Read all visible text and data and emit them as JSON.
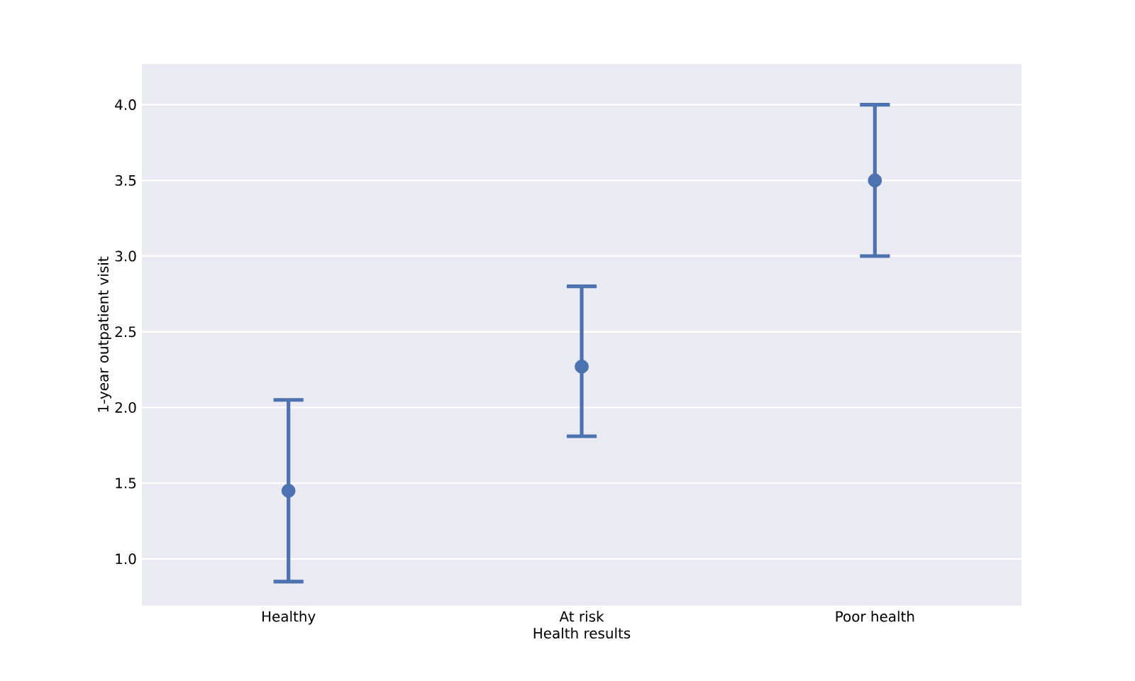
{
  "chart_data": {
    "type": "scatter",
    "xlabel": "Health results",
    "ylabel": "1-year outpatient visit",
    "categories": [
      "Healthy",
      "At risk",
      "Poor health"
    ],
    "series": [
      {
        "color": "#4c72b0",
        "values": [
          1.45,
          2.27,
          3.5
        ],
        "errors": [
          [
            0.85,
            2.05
          ],
          [
            1.81,
            2.8
          ],
          [
            3.0,
            4.0
          ]
        ]
      }
    ],
    "ylim": [
      0.69,
      4.27
    ],
    "yticks": [
      {
        "value": 1.0,
        "label": "1.0"
      },
      {
        "value": 1.5,
        "label": "1.5"
      },
      {
        "value": 2.0,
        "label": "2.0"
      },
      {
        "value": 2.5,
        "label": "2.5"
      },
      {
        "value": 3.0,
        "label": "3.0"
      },
      {
        "value": 3.5,
        "label": "3.5"
      },
      {
        "value": 4.0,
        "label": "4.0"
      }
    ],
    "grid": "y",
    "marker": "circle"
  }
}
